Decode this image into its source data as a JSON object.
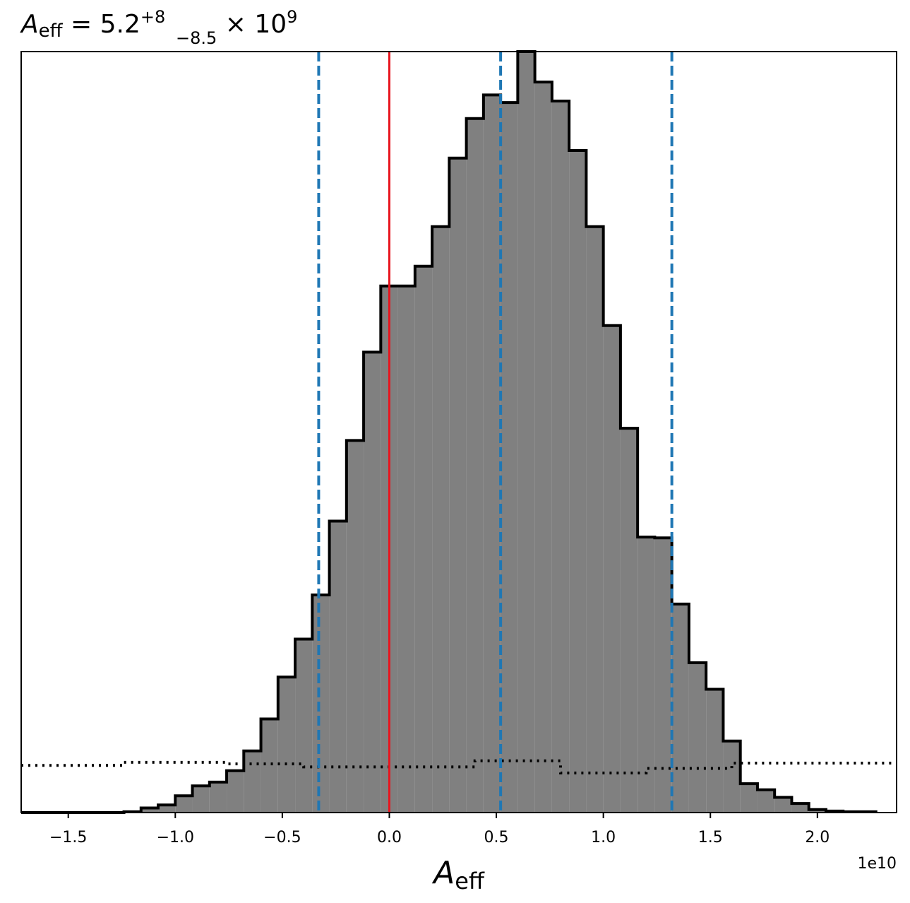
{
  "chart_data": {
    "type": "histogram",
    "title": {
      "symbol": "A",
      "symbol_sub": "eff",
      "equals": " = 5.2",
      "upper_err": "+8",
      "lower_err": "−8.5",
      "times": " × 10",
      "exponent": "9"
    },
    "xlabel": {
      "symbol": "A",
      "sub": "eff"
    },
    "x_offset_label": "1e10",
    "x_scale": 10000000000.0,
    "xlim": [
      -1.72,
      2.37
    ],
    "ylim": [
      0,
      1.0
    ],
    "xticks": [
      -1.5,
      -1.0,
      -0.5,
      0.0,
      0.5,
      1.0,
      1.5,
      2.0
    ],
    "xtick_labels": [
      "−1.5",
      "−1.0",
      "−0.5",
      "0.0",
      "0.5",
      "1.0",
      "1.5",
      "2.0"
    ],
    "histogram": {
      "bin_edges": [
        -1.72,
        -1.64,
        -1.56,
        -1.48,
        -1.4,
        -1.32,
        -1.24,
        -1.16,
        -1.08,
        -1.0,
        -0.92,
        -0.84,
        -0.76,
        -0.68,
        -0.6,
        -0.52,
        -0.44,
        -0.36,
        -0.28,
        -0.2,
        -0.12,
        -0.04,
        0.04,
        0.12,
        0.2,
        0.28,
        0.36,
        0.44,
        0.52,
        0.6,
        0.68,
        0.76,
        0.84,
        0.92,
        1.0,
        1.08,
        1.16,
        1.24,
        1.32,
        1.4,
        1.48,
        1.56,
        1.64,
        1.72,
        1.8,
        1.88,
        1.96,
        2.04,
        2.12,
        2.2,
        2.28
      ],
      "values": [
        0,
        0,
        0,
        0,
        0,
        0,
        0.001,
        0.006,
        0.01,
        0.022,
        0.035,
        0.04,
        0.055,
        0.081,
        0.123,
        0.178,
        0.228,
        0.286,
        0.383,
        0.489,
        0.605,
        0.692,
        0.692,
        0.718,
        0.77,
        0.86,
        0.912,
        0.943,
        0.933,
        1.0,
        0.96,
        0.935,
        0.87,
        0.77,
        0.64,
        0.505,
        0.362,
        0.361,
        0.274,
        0.197,
        0.162,
        0.094,
        0.038,
        0.03,
        0.02,
        0.012,
        0.004,
        0.002,
        0.001,
        0.001
      ],
      "fill_color": "#808080",
      "edge_color": "#000000"
    },
    "prior": {
      "bin_edges": [
        -1.72,
        -1.24,
        -0.76,
        -0.4,
        0.4,
        0.8,
        1.2,
        1.6,
        2.37
      ],
      "values": [
        0.062,
        0.066,
        0.064,
        0.06,
        0.068,
        0.052,
        0.058,
        0.065
      ],
      "style": "dotted",
      "color": "#000000"
    },
    "vlines": [
      {
        "x": 0.0,
        "color": "#e8141e",
        "style": "solid"
      },
      {
        "x": -0.33,
        "color": "#1f77b4",
        "style": "dashed"
      },
      {
        "x": 0.52,
        "color": "#1f77b4",
        "style": "dashed"
      },
      {
        "x": 1.32,
        "color": "#1f77b4",
        "style": "dashed"
      }
    ],
    "grid": false
  }
}
